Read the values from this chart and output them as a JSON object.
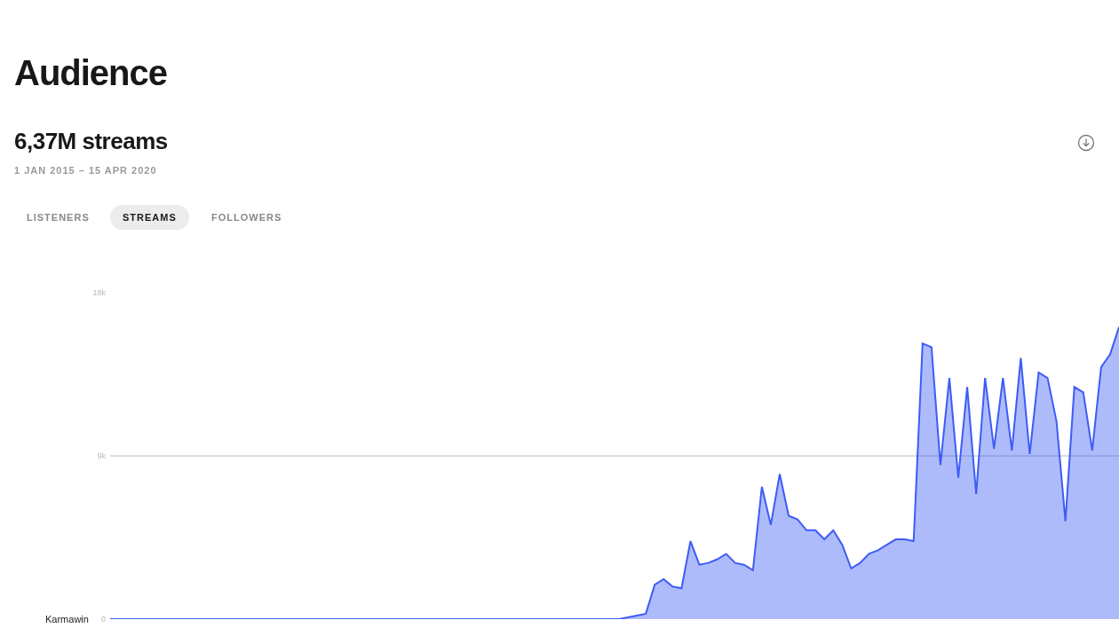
{
  "chart_data": {
    "type": "area",
    "title": "Audience",
    "subtitle": "6,37M streams",
    "annotations": [
      "1 JAN 2015 – 15 APR 2020",
      "LISTENERS",
      "STREAMS",
      "FOLLOWERS"
    ],
    "categories": [
      null,
      null,
      null,
      null,
      null,
      null,
      null,
      null,
      null,
      null,
      null,
      null,
      null,
      null,
      null,
      null,
      null,
      null,
      null,
      null,
      null,
      null,
      null,
      null,
      null,
      null,
      null,
      null,
      null,
      null,
      null,
      null,
      null,
      null,
      null,
      null,
      null,
      null,
      null,
      null,
      null,
      null,
      null,
      null,
      null,
      null,
      null,
      null,
      null,
      null,
      null,
      null,
      null,
      null,
      null,
      null,
      null,
      null,
      null,
      null,
      null,
      null,
      null,
      null,
      null,
      null,
      null,
      null,
      null,
      null,
      null,
      null,
      null,
      null,
      null,
      null,
      null,
      null,
      null,
      null,
      null,
      null,
      null,
      null,
      null,
      null,
      null,
      null,
      null,
      null,
      null,
      null,
      null,
      null,
      null,
      null,
      null,
      null,
      null,
      null,
      null,
      null,
      null,
      null,
      null,
      null,
      null,
      null,
      null,
      null,
      null,
      null,
      null,
      null
    ],
    "series": [
      {
        "name": "Karmawin",
        "color": "#3d5cf5",
        "values": [
          0,
          0,
          0,
          0,
          0,
          0,
          0,
          0,
          0,
          0,
          0,
          0,
          0,
          0,
          0,
          0,
          0,
          0,
          0,
          0,
          0,
          0,
          0,
          0,
          0,
          0,
          0,
          0,
          0,
          0,
          0,
          0,
          0,
          0,
          0,
          0,
          0,
          0,
          0,
          0,
          0,
          0,
          0,
          0,
          0,
          0,
          0,
          0,
          0,
          0,
          0,
          0,
          0,
          0,
          0,
          0,
          0,
          0,
          100,
          200,
          300,
          1900,
          2200,
          1800,
          1700,
          4300,
          3000,
          3100,
          3300,
          3600,
          3100,
          3000,
          2700,
          7300,
          5200,
          8000,
          5700,
          5500,
          4900,
          4900,
          4400,
          4900,
          4100,
          2800,
          3100,
          3600,
          3800,
          4100,
          4400,
          4400,
          4300,
          15200,
          15000,
          8500,
          13300,
          7800,
          12800,
          6900,
          13300,
          9400,
          13300,
          9300,
          14400,
          9100,
          13600,
          13300,
          10900,
          5400,
          12800,
          12500,
          9300,
          13900,
          14600,
          16100
        ]
      }
    ],
    "ylim": [
      0,
      18000
    ],
    "yticks": [
      0,
      {
        "value": 9000,
        "label": "9k"
      },
      {
        "value": 18000,
        "label": "18k"
      }
    ],
    "grid": "y",
    "tick_labels": "y"
  }
}
